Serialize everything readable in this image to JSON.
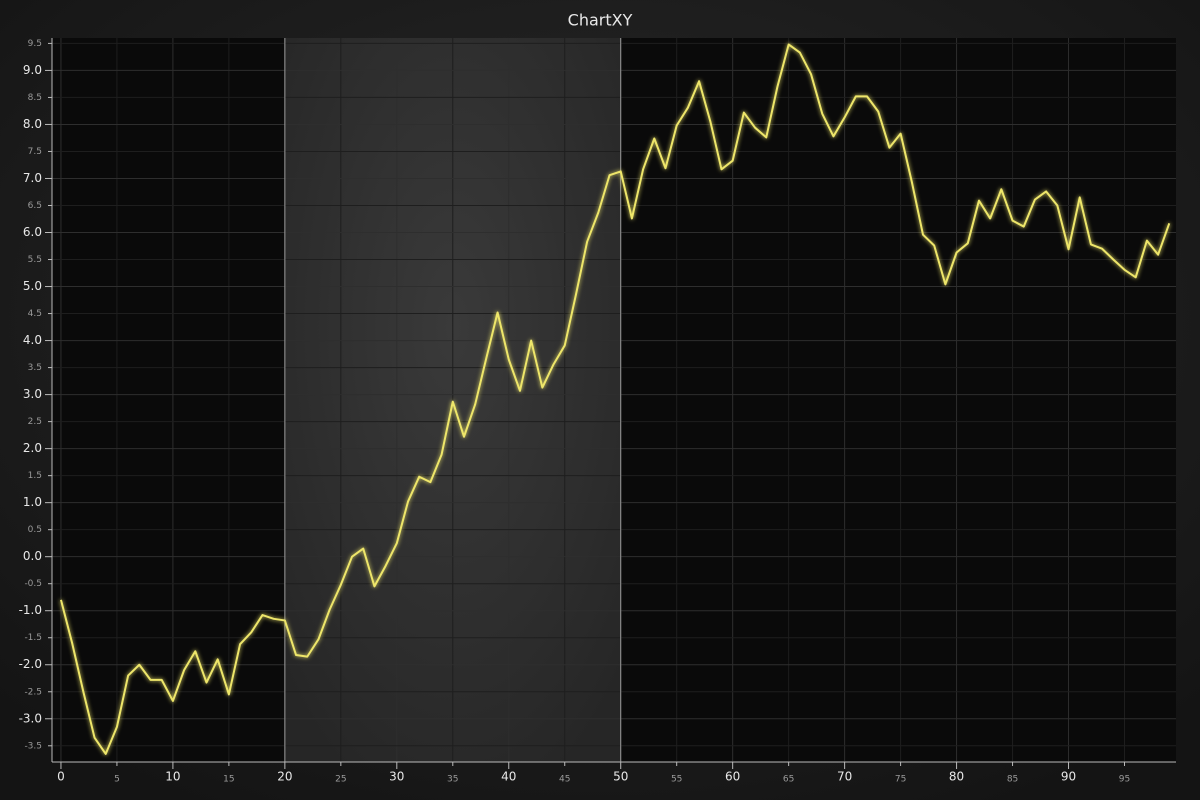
{
  "chart_data": {
    "type": "line",
    "title": "ChartXY",
    "color": "#eee66a",
    "grid": true,
    "band": [
      20,
      50
    ],
    "x": [
      0,
      1,
      2,
      3,
      4,
      5,
      6,
      7,
      8,
      9,
      10,
      11,
      12,
      13,
      14,
      15,
      16,
      17,
      18,
      19,
      20,
      21,
      22,
      23,
      24,
      25,
      26,
      27,
      28,
      29,
      30,
      31,
      32,
      33,
      34,
      35,
      36,
      37,
      38,
      39,
      40,
      41,
      42,
      43,
      44,
      45,
      46,
      47,
      48,
      49,
      50,
      51,
      52,
      53,
      54,
      55,
      56,
      57,
      58,
      59,
      60,
      61,
      62,
      63,
      64,
      65,
      66,
      67,
      68,
      69,
      70,
      71,
      72,
      73,
      74,
      75,
      76,
      77,
      78,
      79,
      80,
      81,
      82,
      83,
      84,
      85,
      86,
      87,
      88,
      89,
      90,
      91,
      92,
      93,
      94,
      95,
      96,
      97,
      98,
      99
    ],
    "values": [
      -0.8,
      -1.6,
      -2.5,
      -3.35,
      -3.65,
      -3.15,
      -2.2,
      -2.0,
      -2.28,
      -2.28,
      -2.67,
      -2.1,
      -1.75,
      -2.33,
      -1.9,
      -2.55,
      -1.62,
      -1.4,
      -1.08,
      -1.15,
      -1.18,
      -1.82,
      -1.85,
      -1.53,
      -0.98,
      -0.52,
      0.0,
      0.15,
      -0.55,
      -0.17,
      0.25,
      1.02,
      1.48,
      1.38,
      1.89,
      2.87,
      2.22,
      2.82,
      3.68,
      4.52,
      3.65,
      3.07,
      4.0,
      3.13,
      3.56,
      3.91,
      4.85,
      5.83,
      6.37,
      7.06,
      7.13,
      6.26,
      7.17,
      7.74,
      7.19,
      7.98,
      8.31,
      8.8,
      8.06,
      7.17,
      7.33,
      8.22,
      7.94,
      7.76,
      8.7,
      9.48,
      9.33,
      8.93,
      8.2,
      7.78,
      8.13,
      8.52,
      8.52,
      8.24,
      7.57,
      7.83,
      6.94,
      5.96,
      5.76,
      5.04,
      5.63,
      5.8,
      6.59,
      6.26,
      6.8,
      6.22,
      6.11,
      6.61,
      6.76,
      6.5,
      5.69,
      6.65,
      5.78,
      5.7,
      5.5,
      5.31,
      5.17,
      5.85,
      5.59,
      6.17
    ],
    "xlim": [
      -0.8,
      99.6
    ],
    "xticks": [
      0,
      10,
      20,
      30,
      40,
      50,
      60,
      70,
      80,
      90
    ],
    "xticks_minor": [
      5,
      15,
      25,
      35,
      45,
      55,
      65,
      75,
      85,
      95
    ],
    "ylim": [
      -3.8,
      9.6
    ],
    "yticks": [
      {
        "value": -3,
        "label": "-3.0"
      },
      {
        "value": -2,
        "label": "-2.0"
      },
      {
        "value": -1,
        "label": "-1.0"
      },
      {
        "value": 0,
        "label": "0.0"
      },
      {
        "value": 1,
        "label": "1.0"
      },
      {
        "value": 2,
        "label": "2.0"
      },
      {
        "value": 3,
        "label": "3.0"
      },
      {
        "value": 4,
        "label": "4.0"
      },
      {
        "value": 5,
        "label": "5.0"
      },
      {
        "value": 6,
        "label": "6.0"
      },
      {
        "value": 7,
        "label": "7.0"
      },
      {
        "value": 8,
        "label": "8.0"
      },
      {
        "value": 9,
        "label": "9.0"
      }
    ],
    "yticks_minor": [
      -3.5,
      -2.5,
      -1.5,
      -0.5,
      0.5,
      1.5,
      2.5,
      3.5,
      4.5,
      5.5,
      6.5,
      7.5,
      8.5,
      9.5
    ]
  }
}
